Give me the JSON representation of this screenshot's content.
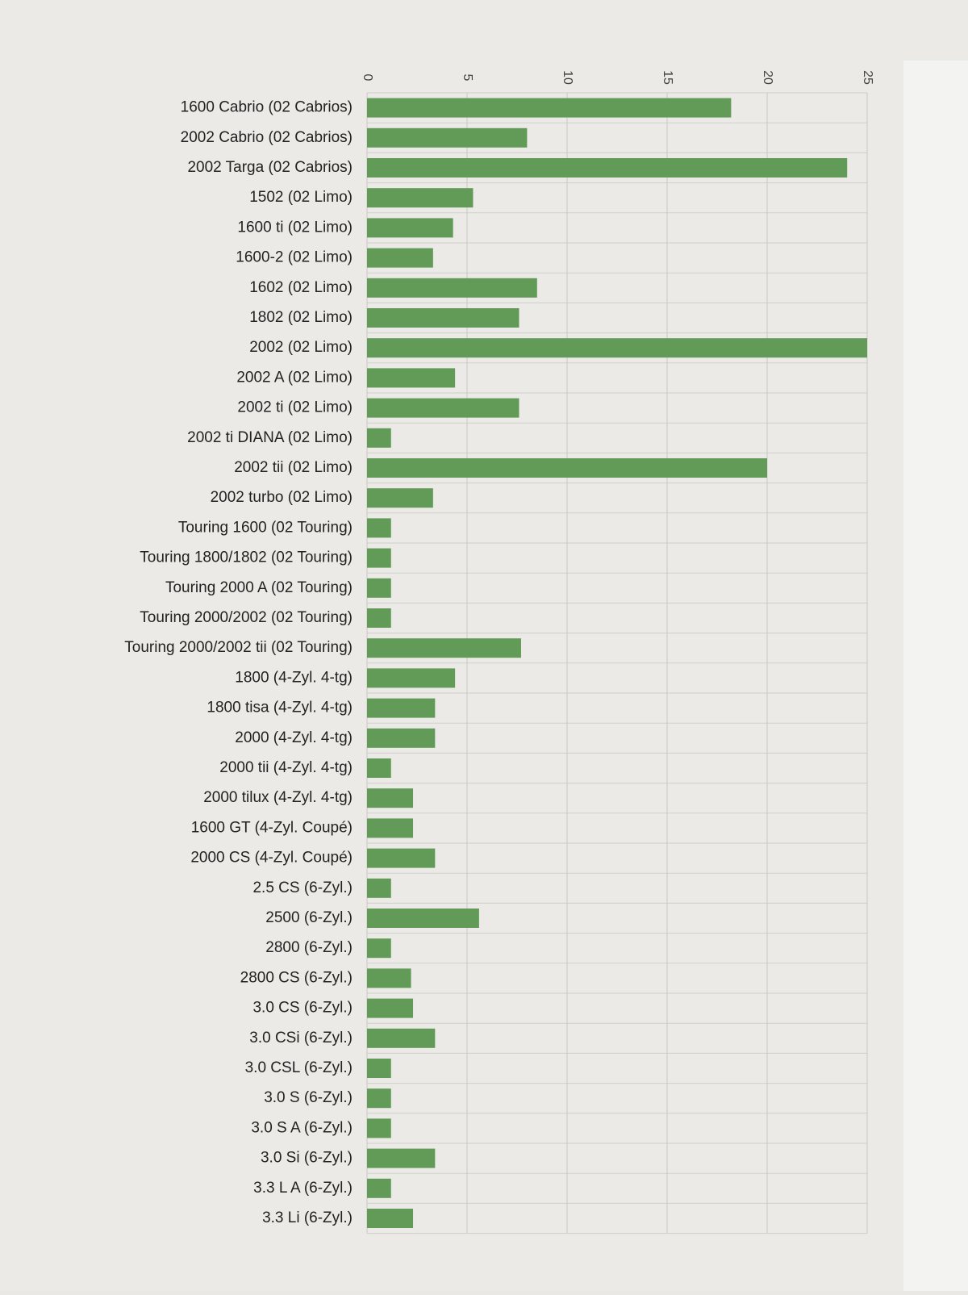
{
  "chart_data": {
    "type": "barh",
    "categories": [
      "1600 Cabrio (02 Cabrios)",
      "2002 Cabrio (02 Cabrios)",
      "2002 Targa (02 Cabrios)",
      "1502 (02 Limo)",
      "1600 ti (02 Limo)",
      "1600-2 (02 Limo)",
      "1602 (02 Limo)",
      "1802 (02 Limo)",
      "2002 (02 Limo)",
      "2002 A (02 Limo)",
      "2002 ti (02 Limo)",
      "2002 ti DIANA (02 Limo)",
      "2002 tii (02 Limo)",
      "2002 turbo (02 Limo)",
      "Touring 1600 (02 Touring)",
      "Touring 1800/1802 (02 Touring)",
      "Touring 2000 A (02 Touring)",
      "Touring 2000/2002 (02 Touring)",
      "Touring 2000/2002  tii (02 Touring)",
      "1800 (4-Zyl. 4-tg)",
      "1800 tisa (4-Zyl. 4-tg)",
      "2000 (4-Zyl. 4-tg)",
      "2000 tii (4-Zyl. 4-tg)",
      "2000 tilux (4-Zyl. 4-tg)",
      "1600 GT (4-Zyl. Coupé)",
      "2000 CS (4-Zyl. Coupé)",
      "2.5 CS (6-Zyl.)",
      "2500 (6-Zyl.)",
      "2800 (6-Zyl.)",
      "2800 CS (6-Zyl.)",
      "3.0 CS (6-Zyl.)",
      "3.0 CSi (6-Zyl.)",
      "3.0 CSL (6-Zyl.)",
      "3.0 S (6-Zyl.)",
      "3.0 S A (6-Zyl.)",
      "3.0 Si (6-Zyl.)",
      "3.3 L A (6-Zyl.)",
      "3.3 Li (6-Zyl.)"
    ],
    "values": [
      18.2,
      8.0,
      24.0,
      5.3,
      4.3,
      3.3,
      8.5,
      7.6,
      25.0,
      4.4,
      7.6,
      1.2,
      20.0,
      3.3,
      1.2,
      1.2,
      1.2,
      1.2,
      7.7,
      4.4,
      3.4,
      3.4,
      1.2,
      2.3,
      2.3,
      3.4,
      1.2,
      5.6,
      1.2,
      2.2,
      2.3,
      3.4,
      1.2,
      1.2,
      1.2,
      3.4,
      1.2,
      2.3
    ],
    "color": "#619b57",
    "xlim": [
      0,
      25
    ],
    "xticks": [
      0,
      5,
      10,
      15,
      20,
      25
    ],
    "grid": true
  }
}
